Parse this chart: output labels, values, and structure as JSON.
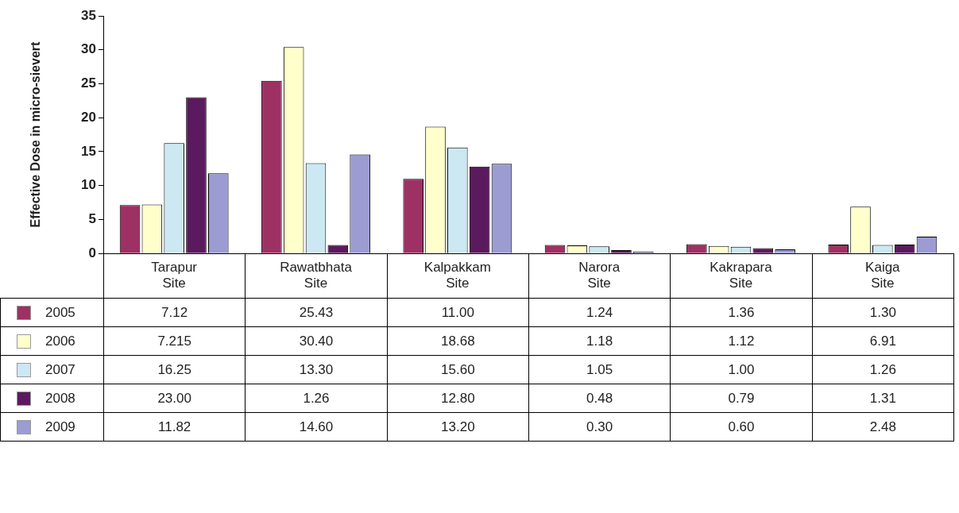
{
  "chart_data": {
    "type": "bar",
    "ylabel": "Effective Dose in micro-sievert",
    "categories": [
      "Tarapur Site",
      "Rawatbhata Site",
      "Kalpakkam Site",
      "Narora Site",
      "Kakrapara Site",
      "Kaiga Site"
    ],
    "ylim": [
      0,
      35
    ],
    "yticks": [
      0,
      5,
      10,
      15,
      20,
      25,
      30,
      35
    ],
    "grid": false,
    "legend": "bottom",
    "series": [
      {
        "name": "2005",
        "color": "#9e3163",
        "values": [
          7.12,
          25.43,
          11.0,
          1.24,
          1.36,
          1.3
        ],
        "value_labels": [
          "7.12",
          "25.43",
          "11.00",
          "1.24",
          "1.36",
          "1.30"
        ]
      },
      {
        "name": "2006",
        "color": "#ffffcc",
        "values": [
          7.215,
          30.4,
          18.68,
          1.18,
          1.12,
          6.91
        ],
        "value_labels": [
          "7.215",
          "30.40",
          "18.68",
          "1.18",
          "1.12",
          "6.91"
        ]
      },
      {
        "name": "2007",
        "color": "#cce8f2",
        "values": [
          16.25,
          13.3,
          15.6,
          1.05,
          1.0,
          1.26
        ],
        "value_labels": [
          "16.25",
          "13.30",
          "15.60",
          "1.05",
          "1.00",
          "1.26"
        ]
      },
      {
        "name": "2008",
        "color": "#5c1a5e",
        "values": [
          23.0,
          1.26,
          12.8,
          0.48,
          0.79,
          1.31
        ],
        "value_labels": [
          "23.00",
          "1.26",
          "12.80",
          "0.48",
          "0.79",
          "1.31"
        ]
      },
      {
        "name": "2009",
        "color": "#9c9cd2",
        "values": [
          11.82,
          14.6,
          13.2,
          0.3,
          0.6,
          2.48
        ],
        "value_labels": [
          "11.82",
          "14.60",
          "13.20",
          "0.30",
          "0.60",
          "2.48"
        ]
      }
    ]
  }
}
